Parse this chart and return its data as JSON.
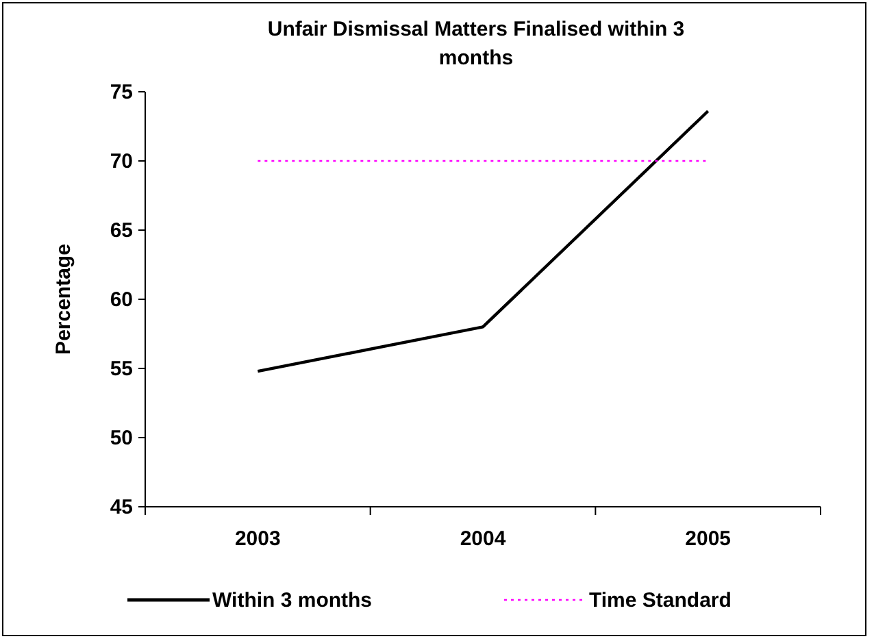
{
  "chart_data": {
    "type": "line",
    "title": "Unfair Dismissal Matters Finalised within 3 months",
    "ylabel": "Percentage",
    "categories": [
      "2003",
      "2004",
      "2005"
    ],
    "series": [
      {
        "name": "Within 3 months",
        "color": "#000000",
        "values": [
          54.8,
          58,
          73.6
        ],
        "line_style": "solid"
      },
      {
        "name": "Time Standard",
        "color": "#ff00ff",
        "values": [
          70,
          70,
          70
        ],
        "line_style": "dotted"
      }
    ],
    "ylim": [
      45,
      75
    ],
    "yticks": [
      45,
      50,
      55,
      60,
      65,
      70,
      75
    ],
    "grid": false,
    "legend": "bottom",
    "marker": "none"
  }
}
